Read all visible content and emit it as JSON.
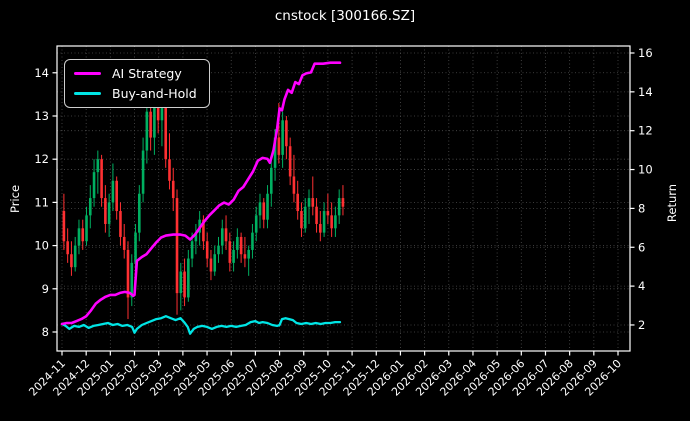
{
  "title": {
    "text": "cnstock [300166.SZ]"
  },
  "legend": {
    "items": [
      {
        "label": "AI Strategy",
        "color": "#ff00ff"
      },
      {
        "label": "Buy-and-Hold",
        "color": "#00e5e5"
      }
    ]
  },
  "colors": {
    "background": "#000000",
    "text": "#ffffff",
    "axis": "#ffffff",
    "grid": "#4d4d4d",
    "up": "#00b061",
    "down": "#fe3032",
    "ai_strategy": "#ff00ff",
    "buy_and_hold": "#00e5e5"
  },
  "chart_data": {
    "type": "candlestick+line",
    "title": "cnstock [300166.SZ]",
    "grid": "dotted, both axes",
    "legend_position": "upper left",
    "x_axis": {
      "unit": "month",
      "labels": [
        "2024-11",
        "2024-12",
        "2025-01",
        "2025-02",
        "2025-03",
        "2025-04",
        "2025-05",
        "2025-06",
        "2025-07",
        "2025-08",
        "2025-09",
        "2025-10",
        "2025-11",
        "2025-12",
        "2026-01",
        "2026-02",
        "2026-03",
        "2026-04",
        "2026-05",
        "2026-06",
        "2026-07",
        "2026-08",
        "2026-09",
        "2026-10"
      ],
      "label_rotation_deg": 45
    },
    "left_axis": {
      "label": "Price",
      "ticks": [
        8,
        9,
        10,
        11,
        12,
        13,
        14
      ],
      "range": [
        7.56,
        14.62
      ]
    },
    "right_axis": {
      "label": "Return",
      "ticks": [
        2,
        4,
        6,
        8,
        10,
        12,
        14,
        16
      ],
      "range": [
        0.66,
        16.36
      ]
    },
    "candles": {
      "axis": "left",
      "x_start_month": 0.0,
      "x_end_month": 11.7,
      "note": "OHLC, months 2024-11 through early 2025-11",
      "ohlc": [
        [
          10.8,
          11.2,
          9.9,
          10.1
        ],
        [
          10.1,
          10.4,
          9.6,
          9.8
        ],
        [
          9.8,
          10.1,
          9.3,
          9.5
        ],
        [
          9.5,
          10.2,
          9.4,
          10.0
        ],
        [
          10.0,
          10.6,
          9.8,
          10.4
        ],
        [
          10.4,
          10.6,
          9.9,
          10.1
        ],
        [
          10.1,
          10.9,
          10.0,
          10.7
        ],
        [
          10.7,
          11.4,
          10.4,
          11.1
        ],
        [
          11.1,
          12.0,
          10.9,
          11.7
        ],
        [
          11.7,
          12.2,
          11.2,
          12.0
        ],
        [
          12.0,
          12.1,
          10.9,
          11.1
        ],
        [
          11.1,
          11.4,
          10.3,
          10.5
        ],
        [
          10.5,
          11.2,
          10.2,
          11.0
        ],
        [
          11.0,
          11.9,
          10.8,
          11.5
        ],
        [
          11.5,
          11.6,
          10.6,
          10.8
        ],
        [
          10.8,
          11.0,
          10.0,
          10.2
        ],
        [
          10.2,
          10.5,
          9.7,
          9.9
        ],
        [
          9.9,
          10.1,
          8.3,
          8.8
        ],
        [
          8.8,
          9.8,
          8.6,
          9.6
        ],
        [
          9.6,
          10.5,
          9.4,
          10.3
        ],
        [
          10.3,
          11.4,
          10.1,
          11.2
        ],
        [
          11.2,
          12.5,
          11.0,
          12.2
        ],
        [
          12.2,
          13.6,
          11.9,
          13.1
        ],
        [
          13.1,
          13.4,
          12.2,
          12.5
        ],
        [
          12.5,
          13.6,
          12.1,
          13.3
        ],
        [
          13.3,
          13.9,
          12.6,
          12.9
        ],
        [
          12.9,
          13.5,
          12.3,
          13.2
        ],
        [
          13.2,
          13.3,
          11.8,
          12.0
        ],
        [
          12.0,
          12.6,
          11.3,
          11.5
        ],
        [
          11.5,
          11.8,
          10.8,
          11.1
        ],
        [
          11.1,
          11.3,
          8.4,
          8.9
        ],
        [
          8.9,
          9.6,
          8.5,
          9.4
        ],
        [
          9.4,
          9.7,
          8.6,
          8.8
        ],
        [
          8.8,
          9.9,
          8.7,
          9.7
        ],
        [
          9.7,
          10.3,
          9.5,
          10.1
        ],
        [
          10.1,
          10.5,
          9.8,
          10.3
        ],
        [
          10.3,
          10.8,
          10.0,
          10.6
        ],
        [
          10.6,
          10.7,
          9.9,
          10.1
        ],
        [
          10.1,
          10.3,
          9.5,
          9.7
        ],
        [
          9.7,
          9.9,
          9.2,
          9.4
        ],
        [
          9.4,
          10.0,
          9.3,
          9.8
        ],
        [
          9.8,
          10.2,
          9.6,
          10.0
        ],
        [
          10.0,
          10.6,
          9.8,
          10.4
        ],
        [
          10.4,
          10.7,
          9.9,
          10.1
        ],
        [
          10.1,
          10.3,
          9.4,
          9.6
        ],
        [
          9.6,
          10.1,
          9.4,
          9.9
        ],
        [
          9.9,
          10.4,
          9.7,
          10.2
        ],
        [
          10.2,
          10.3,
          9.6,
          9.8
        ],
        [
          9.8,
          10.2,
          9.5,
          9.7
        ],
        [
          9.7,
          10.0,
          9.3,
          9.9
        ],
        [
          9.9,
          10.5,
          9.7,
          10.3
        ],
        [
          10.3,
          10.9,
          10.1,
          10.7
        ],
        [
          10.7,
          11.2,
          10.4,
          11.0
        ],
        [
          11.0,
          11.1,
          10.4,
          10.6
        ],
        [
          10.6,
          11.4,
          10.4,
          11.2
        ],
        [
          11.2,
          12.0,
          10.9,
          11.8
        ],
        [
          11.8,
          12.7,
          11.5,
          12.5
        ],
        [
          12.5,
          13.3,
          11.9,
          12.1
        ],
        [
          12.1,
          13.1,
          11.8,
          12.9
        ],
        [
          12.9,
          13.0,
          12.0,
          12.3
        ],
        [
          12.3,
          12.5,
          11.4,
          11.6
        ],
        [
          11.6,
          12.1,
          11.0,
          11.2
        ],
        [
          11.2,
          11.5,
          10.6,
          10.8
        ],
        [
          10.8,
          11.0,
          10.2,
          10.4
        ],
        [
          10.4,
          11.1,
          10.3,
          10.9
        ],
        [
          10.9,
          11.3,
          10.5,
          11.1
        ],
        [
          11.1,
          11.6,
          10.7,
          10.9
        ],
        [
          10.9,
          11.1,
          10.3,
          10.5
        ],
        [
          10.5,
          10.8,
          10.1,
          10.3
        ],
        [
          10.3,
          11.0,
          10.2,
          10.8
        ],
        [
          10.8,
          11.2,
          10.5,
          10.7
        ],
        [
          10.7,
          11.0,
          10.2,
          10.4
        ],
        [
          10.4,
          10.9,
          10.2,
          10.7
        ],
        [
          10.7,
          11.3,
          10.5,
          11.1
        ],
        [
          11.1,
          11.4,
          10.7,
          10.9
        ]
      ]
    },
    "series": [
      {
        "name": "AI Strategy",
        "axis": "right",
        "color": "#ff00ff",
        "width": 2.6,
        "points": [
          [
            0,
            2.05
          ],
          [
            0.2,
            2.1
          ],
          [
            0.4,
            2.1
          ],
          [
            0.6,
            2.2
          ],
          [
            0.8,
            2.3
          ],
          [
            1.0,
            2.45
          ],
          [
            1.2,
            2.75
          ],
          [
            1.4,
            3.1
          ],
          [
            1.6,
            3.3
          ],
          [
            1.8,
            3.45
          ],
          [
            2.0,
            3.55
          ],
          [
            2.2,
            3.55
          ],
          [
            2.4,
            3.65
          ],
          [
            2.6,
            3.7
          ],
          [
            2.8,
            3.65
          ],
          [
            2.95,
            3.5
          ],
          [
            3.0,
            3.55
          ],
          [
            3.1,
            5.3
          ],
          [
            3.3,
            5.5
          ],
          [
            3.5,
            5.65
          ],
          [
            3.7,
            5.95
          ],
          [
            3.9,
            6.25
          ],
          [
            4.1,
            6.5
          ],
          [
            4.3,
            6.6
          ],
          [
            4.6,
            6.65
          ],
          [
            4.9,
            6.65
          ],
          [
            5.1,
            6.6
          ],
          [
            5.3,
            6.4
          ],
          [
            5.5,
            6.65
          ],
          [
            5.7,
            7.0
          ],
          [
            5.9,
            7.35
          ],
          [
            6.1,
            7.65
          ],
          [
            6.3,
            7.9
          ],
          [
            6.5,
            8.15
          ],
          [
            6.7,
            8.3
          ],
          [
            6.9,
            8.2
          ],
          [
            7.1,
            8.45
          ],
          [
            7.3,
            8.9
          ],
          [
            7.5,
            9.1
          ],
          [
            7.7,
            9.5
          ],
          [
            7.9,
            9.9
          ],
          [
            8.1,
            10.45
          ],
          [
            8.3,
            10.6
          ],
          [
            8.5,
            10.55
          ],
          [
            8.6,
            10.35
          ],
          [
            8.75,
            11.0
          ],
          [
            8.9,
            12.1
          ],
          [
            9.0,
            13.15
          ],
          [
            9.1,
            13.05
          ],
          [
            9.2,
            13.6
          ],
          [
            9.35,
            14.1
          ],
          [
            9.5,
            13.95
          ],
          [
            9.65,
            14.5
          ],
          [
            9.8,
            14.4
          ],
          [
            9.95,
            14.85
          ],
          [
            10.1,
            14.95
          ],
          [
            10.3,
            15.0
          ],
          [
            10.45,
            15.45
          ],
          [
            10.8,
            15.45
          ],
          [
            11.1,
            15.5
          ],
          [
            11.5,
            15.5
          ]
        ]
      },
      {
        "name": "Buy-and-Hold",
        "axis": "right",
        "color": "#00e5e5",
        "width": 2.3,
        "points": [
          [
            0,
            2.05
          ],
          [
            0.15,
            1.95
          ],
          [
            0.3,
            1.8
          ],
          [
            0.5,
            1.95
          ],
          [
            0.7,
            1.9
          ],
          [
            0.9,
            2.0
          ],
          [
            1.1,
            1.85
          ],
          [
            1.3,
            1.95
          ],
          [
            1.5,
            2.0
          ],
          [
            1.7,
            2.05
          ],
          [
            1.9,
            2.1
          ],
          [
            2.1,
            2.0
          ],
          [
            2.3,
            2.05
          ],
          [
            2.5,
            1.95
          ],
          [
            2.7,
            2.0
          ],
          [
            2.9,
            1.9
          ],
          [
            3.0,
            1.6
          ],
          [
            3.1,
            1.8
          ],
          [
            3.3,
            2.0
          ],
          [
            3.5,
            2.1
          ],
          [
            3.7,
            2.2
          ],
          [
            3.9,
            2.3
          ],
          [
            4.1,
            2.35
          ],
          [
            4.3,
            2.45
          ],
          [
            4.5,
            2.35
          ],
          [
            4.7,
            2.25
          ],
          [
            4.9,
            2.35
          ],
          [
            5.05,
            2.15
          ],
          [
            5.2,
            1.9
          ],
          [
            5.3,
            1.55
          ],
          [
            5.45,
            1.8
          ],
          [
            5.6,
            1.9
          ],
          [
            5.8,
            1.95
          ],
          [
            6.0,
            1.9
          ],
          [
            6.2,
            1.8
          ],
          [
            6.4,
            1.9
          ],
          [
            6.6,
            1.95
          ],
          [
            6.8,
            1.9
          ],
          [
            7.0,
            1.95
          ],
          [
            7.2,
            1.9
          ],
          [
            7.4,
            1.95
          ],
          [
            7.6,
            2.0
          ],
          [
            7.8,
            2.15
          ],
          [
            8.0,
            2.2
          ],
          [
            8.15,
            2.1
          ],
          [
            8.3,
            2.15
          ],
          [
            8.5,
            2.1
          ],
          [
            8.7,
            2.0
          ],
          [
            8.9,
            1.95
          ],
          [
            9.0,
            2.0
          ],
          [
            9.1,
            2.3
          ],
          [
            9.25,
            2.35
          ],
          [
            9.4,
            2.3
          ],
          [
            9.55,
            2.25
          ],
          [
            9.7,
            2.1
          ],
          [
            9.9,
            2.05
          ],
          [
            10.1,
            2.1
          ],
          [
            10.3,
            2.05
          ],
          [
            10.5,
            2.1
          ],
          [
            10.7,
            2.05
          ],
          [
            10.9,
            2.1
          ],
          [
            11.1,
            2.1
          ],
          [
            11.3,
            2.15
          ],
          [
            11.5,
            2.15
          ]
        ]
      }
    ]
  }
}
